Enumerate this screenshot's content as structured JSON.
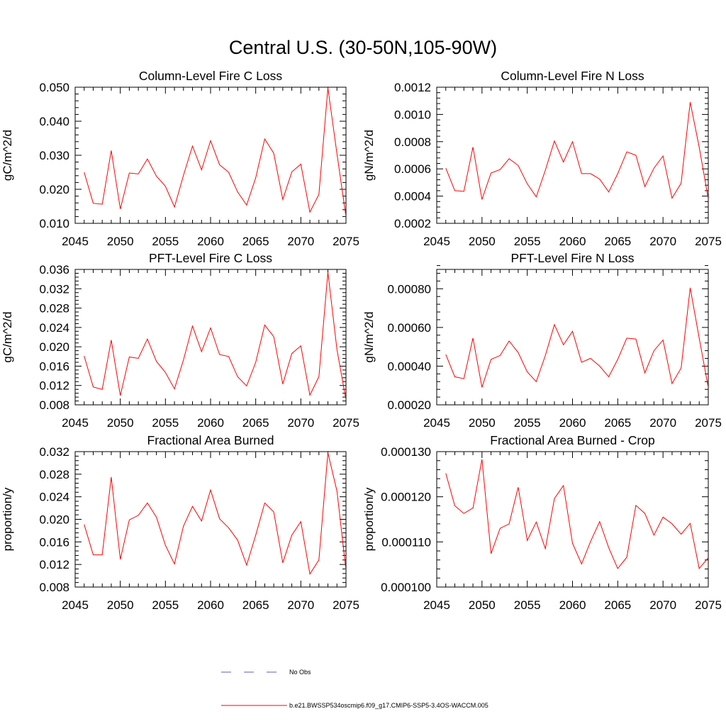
{
  "figure_title": "Central U.S. (30-50N,105-90W)",
  "legend": {
    "placement": "bottom-center",
    "entries": [
      {
        "label": "No Obs",
        "color": "#5a5acd",
        "dash": "dashed"
      },
      {
        "label": "b.e21.BWSSP534oscmip6.f09_g17.CMIP6-SSP5-3.4OS-WACCM.005",
        "color": "#ff0000",
        "dash": "solid"
      }
    ]
  },
  "chart_data": [
    {
      "type": "line",
      "title": "Column-Level Fire C Loss",
      "ylabel": "gC/m^2/d",
      "xlim": [
        2045,
        2075
      ],
      "ylim": [
        0.01,
        0.05
      ],
      "xticks": [
        2045,
        2050,
        2055,
        2060,
        2065,
        2070,
        2075
      ],
      "xtick_labels": [
        "2045",
        "2050",
        "2055",
        "2060",
        "2065",
        "2070",
        "2075"
      ],
      "yticks": [
        0.01,
        0.02,
        0.03,
        0.04,
        0.05
      ],
      "ytick_labels": [
        "0.010",
        "0.020",
        "0.030",
        "0.040",
        "0.050"
      ],
      "grid": false,
      "series": [
        {
          "color": "#ff0000",
          "x": [
            2046,
            2047,
            2048,
            2049,
            2050,
            2051,
            2052,
            2053,
            2054,
            2055,
            2056,
            2057,
            2058,
            2059,
            2060,
            2061,
            2062,
            2063,
            2064,
            2065,
            2066,
            2067,
            2068,
            2069,
            2070,
            2071,
            2072,
            2073,
            2074,
            2075
          ],
          "values": [
            0.025,
            0.0159,
            0.0156,
            0.0314,
            0.0142,
            0.0248,
            0.0245,
            0.0289,
            0.0239,
            0.0209,
            0.0148,
            0.0241,
            0.0327,
            0.0257,
            0.0343,
            0.0272,
            0.025,
            0.0192,
            0.0154,
            0.0234,
            0.0348,
            0.0306,
            0.017,
            0.0251,
            0.0274,
            0.0133,
            0.0185,
            0.0498,
            0.0304,
            0.012
          ]
        }
      ]
    },
    {
      "type": "line",
      "title": "Column-Level Fire N Loss",
      "ylabel": "gN/m^2/d",
      "xlim": [
        2045,
        2075
      ],
      "ylim": [
        0.0002,
        0.0012
      ],
      "xticks": [
        2045,
        2050,
        2055,
        2060,
        2065,
        2070,
        2075
      ],
      "xtick_labels": [
        "2045",
        "2050",
        "2055",
        "2060",
        "2065",
        "2070",
        "2075"
      ],
      "yticks": [
        0.0002,
        0.0004,
        0.0006,
        0.0008,
        0.001,
        0.0012
      ],
      "ytick_labels": [
        "0.0002",
        "0.0004",
        "0.0006",
        "0.0008",
        "0.0010",
        "0.0012"
      ],
      "grid": false,
      "series": [
        {
          "color": "#ff0000",
          "x": [
            2046,
            2047,
            2048,
            2049,
            2050,
            2051,
            2052,
            2053,
            2054,
            2055,
            2056,
            2057,
            2058,
            2059,
            2060,
            2061,
            2062,
            2063,
            2064,
            2065,
            2066,
            2067,
            2068,
            2069,
            2070,
            2071,
            2072,
            2073,
            2074,
            2075
          ],
          "values": [
            0.000605,
            0.00044,
            0.000435,
            0.00076,
            0.000375,
            0.00057,
            0.000595,
            0.000675,
            0.000625,
            0.00049,
            0.000395,
            0.00059,
            0.000805,
            0.00065,
            0.0008,
            0.000565,
            0.000565,
            0.000525,
            0.00043,
            0.000565,
            0.000725,
            0.0007,
            0.00047,
            0.000605,
            0.000695,
            0.000385,
            0.000495,
            0.00109,
            0.00076,
            0.00038
          ]
        }
      ]
    },
    {
      "type": "line",
      "title": "PFT-Level Fire C Loss",
      "ylabel": "gC/m^2/d",
      "xlim": [
        2045,
        2075
      ],
      "ylim": [
        0.008,
        0.036
      ],
      "xticks": [
        2045,
        2050,
        2055,
        2060,
        2065,
        2070,
        2075
      ],
      "xtick_labels": [
        "2045",
        "2050",
        "2055",
        "2060",
        "2065",
        "2070",
        "2075"
      ],
      "yticks": [
        0.008,
        0.012,
        0.016,
        0.02,
        0.024,
        0.028,
        0.032,
        0.036
      ],
      "ytick_labels": [
        "0.008",
        "0.012",
        "0.016",
        "0.020",
        "0.024",
        "0.028",
        "0.032",
        "0.036"
      ],
      "grid": false,
      "series": [
        {
          "color": "#ff0000",
          "x": [
            2046,
            2047,
            2048,
            2049,
            2050,
            2051,
            2052,
            2053,
            2054,
            2055,
            2056,
            2057,
            2058,
            2059,
            2060,
            2061,
            2062,
            2063,
            2064,
            2065,
            2066,
            2067,
            2068,
            2069,
            2070,
            2071,
            2072,
            2073,
            2074,
            2075
          ],
          "values": [
            0.0181,
            0.0117,
            0.0112,
            0.0214,
            0.0099,
            0.0179,
            0.0176,
            0.0216,
            0.017,
            0.0147,
            0.0113,
            0.0173,
            0.0243,
            0.019,
            0.0239,
            0.0184,
            0.018,
            0.0138,
            0.0119,
            0.0168,
            0.0245,
            0.0221,
            0.0123,
            0.0186,
            0.0202,
            0.01,
            0.0138,
            0.0354,
            0.0194,
            0.009
          ]
        }
      ]
    },
    {
      "type": "line",
      "title": "PFT-Level Fire N Loss",
      "ylabel": "gN/m^2/d",
      "xlim": [
        2045,
        2075
      ],
      "ylim": [
        0.0002,
        0.0009
      ],
      "xticks": [
        2045,
        2050,
        2055,
        2060,
        2065,
        2070,
        2075
      ],
      "xtick_labels": [
        "2045",
        "2050",
        "2055",
        "2060",
        "2065",
        "2070",
        "2075"
      ],
      "yticks": [
        0.0002,
        0.0004,
        0.0006,
        0.0008
      ],
      "ytick_labels": [
        "0.00020",
        "0.00040",
        "0.00060",
        "0.00080"
      ],
      "grid": false,
      "series": [
        {
          "color": "#ff0000",
          "x": [
            2046,
            2047,
            2048,
            2049,
            2050,
            2051,
            2052,
            2053,
            2054,
            2055,
            2056,
            2057,
            2058,
            2059,
            2060,
            2061,
            2062,
            2063,
            2064,
            2065,
            2066,
            2067,
            2068,
            2069,
            2070,
            2071,
            2072,
            2073,
            2074,
            2075
          ],
          "values": [
            0.00046,
            0.000345,
            0.000335,
            0.000545,
            0.00029,
            0.000435,
            0.000455,
            0.00053,
            0.00047,
            0.00037,
            0.00032,
            0.000455,
            0.000615,
            0.00051,
            0.00058,
            0.00042,
            0.00044,
            0.0004,
            0.000345,
            0.000435,
            0.000545,
            0.00054,
            0.000365,
            0.00048,
            0.000535,
            0.00031,
            0.00039,
            0.000805,
            0.000545,
            0.00029
          ]
        }
      ]
    },
    {
      "type": "line",
      "title": "Fractional Area Burned",
      "ylabel": "proportion/y",
      "xlim": [
        2045,
        2075
      ],
      "ylim": [
        0.008,
        0.032
      ],
      "xticks": [
        2045,
        2050,
        2055,
        2060,
        2065,
        2070,
        2075
      ],
      "xtick_labels": [
        "2045",
        "2050",
        "2055",
        "2060",
        "2065",
        "2070",
        "2075"
      ],
      "yticks": [
        0.008,
        0.012,
        0.016,
        0.02,
        0.024,
        0.028,
        0.032
      ],
      "ytick_labels": [
        "0.008",
        "0.012",
        "0.016",
        "0.020",
        "0.024",
        "0.028",
        "0.032"
      ],
      "grid": false,
      "series": [
        {
          "color": "#ff0000",
          "x": [
            2046,
            2047,
            2048,
            2049,
            2050,
            2051,
            2052,
            2053,
            2054,
            2055,
            2056,
            2057,
            2058,
            2059,
            2060,
            2061,
            2062,
            2063,
            2064,
            2065,
            2066,
            2067,
            2068,
            2069,
            2070,
            2071,
            2072,
            2073,
            2074,
            2075
          ],
          "values": [
            0.0191,
            0.0137,
            0.0137,
            0.0275,
            0.0129,
            0.0199,
            0.0207,
            0.0229,
            0.0204,
            0.0154,
            0.0121,
            0.0188,
            0.0223,
            0.0197,
            0.0252,
            0.0201,
            0.0185,
            0.0163,
            0.0119,
            0.0172,
            0.0229,
            0.0213,
            0.0123,
            0.0172,
            0.0196,
            0.0103,
            0.0128,
            0.0318,
            0.025,
            0.011
          ]
        }
      ]
    },
    {
      "type": "line",
      "title": "Fractional Area Burned - Crop",
      "ylabel": "proportion/y",
      "xlim": [
        2045,
        2075
      ],
      "ylim": [
        0.0001,
        0.00013
      ],
      "xticks": [
        2045,
        2050,
        2055,
        2060,
        2065,
        2070,
        2075
      ],
      "xtick_labels": [
        "2045",
        "2050",
        "2055",
        "2060",
        "2065",
        "2070",
        "2075"
      ],
      "yticks": [
        0.0001,
        0.00011,
        0.00012,
        0.00013
      ],
      "ytick_labels": [
        "0.000100",
        "0.000110",
        "0.000120",
        "0.000130"
      ],
      "grid": false,
      "series": [
        {
          "color": "#ff0000",
          "x": [
            2046,
            2047,
            2048,
            2049,
            2050,
            2051,
            2052,
            2053,
            2054,
            2055,
            2056,
            2057,
            2058,
            2059,
            2060,
            2061,
            2062,
            2063,
            2064,
            2065,
            2066,
            2067,
            2068,
            2069,
            2070,
            2071,
            2072,
            2073,
            2074,
            2075
          ],
          "values": [
            0.0001252,
            0.000118,
            0.0001163,
            0.0001175,
            0.0001283,
            0.0001074,
            0.000113,
            0.000114,
            0.0001221,
            0.0001103,
            0.0001144,
            0.0001085,
            0.0001196,
            0.0001225,
            0.0001097,
            0.0001051,
            0.0001101,
            0.0001145,
            0.0001087,
            0.0001041,
            0.0001066,
            0.0001181,
            0.0001163,
            0.0001115,
            0.0001155,
            0.000114,
            0.0001117,
            0.0001141,
            0.0001041,
            0.0001065
          ]
        }
      ]
    }
  ]
}
